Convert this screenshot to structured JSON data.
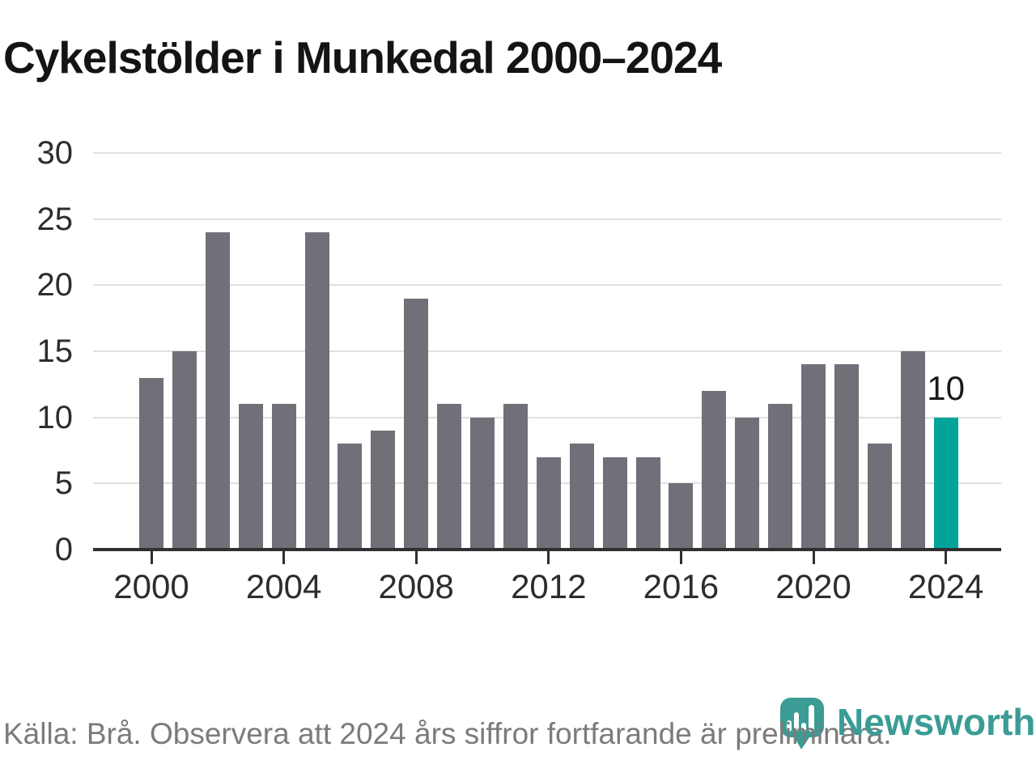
{
  "title": "Cykelstölder i Munkedal 2000–2024",
  "footer": {
    "source": "Källa: Brå. Observera att 2024 års siffror fortfarande är preliminära.",
    "logo_text": "Newsworthy"
  },
  "colors": {
    "bar": "#716f77",
    "highlight": "#00a49a",
    "logo": "#3a9c95",
    "grid": "#e0e0e0",
    "axis": "#303030",
    "tick_label": "#2d2d2d",
    "title_text": "#141414",
    "source_text": "#7b7b7b",
    "background": "#ffffff"
  },
  "chart_data": {
    "type": "bar",
    "title": "Cykelstölder i Munkedal 2000–2024",
    "xlabel": "",
    "ylabel": "",
    "categories": [
      2000,
      2001,
      2002,
      2003,
      2004,
      2005,
      2006,
      2007,
      2008,
      2009,
      2010,
      2011,
      2012,
      2013,
      2014,
      2015,
      2016,
      2017,
      2018,
      2019,
      2020,
      2021,
      2022,
      2023,
      2024
    ],
    "values": [
      13,
      15,
      24,
      11,
      11,
      24,
      8,
      9,
      19,
      11,
      10,
      11,
      7,
      8,
      7,
      7,
      5,
      12,
      10,
      11,
      14,
      14,
      8,
      15,
      10
    ],
    "highlight": {
      "year": 2024,
      "value": 10,
      "label": "10"
    },
    "ylim": [
      0,
      30
    ],
    "yticks": [
      0,
      5,
      10,
      15,
      20,
      25,
      30
    ],
    "xticks": [
      2000,
      2004,
      2008,
      2012,
      2016,
      2020,
      2024
    ],
    "grid": true,
    "legend": null,
    "bar_color": "#716f77",
    "highlight_color": "#00a49a"
  }
}
